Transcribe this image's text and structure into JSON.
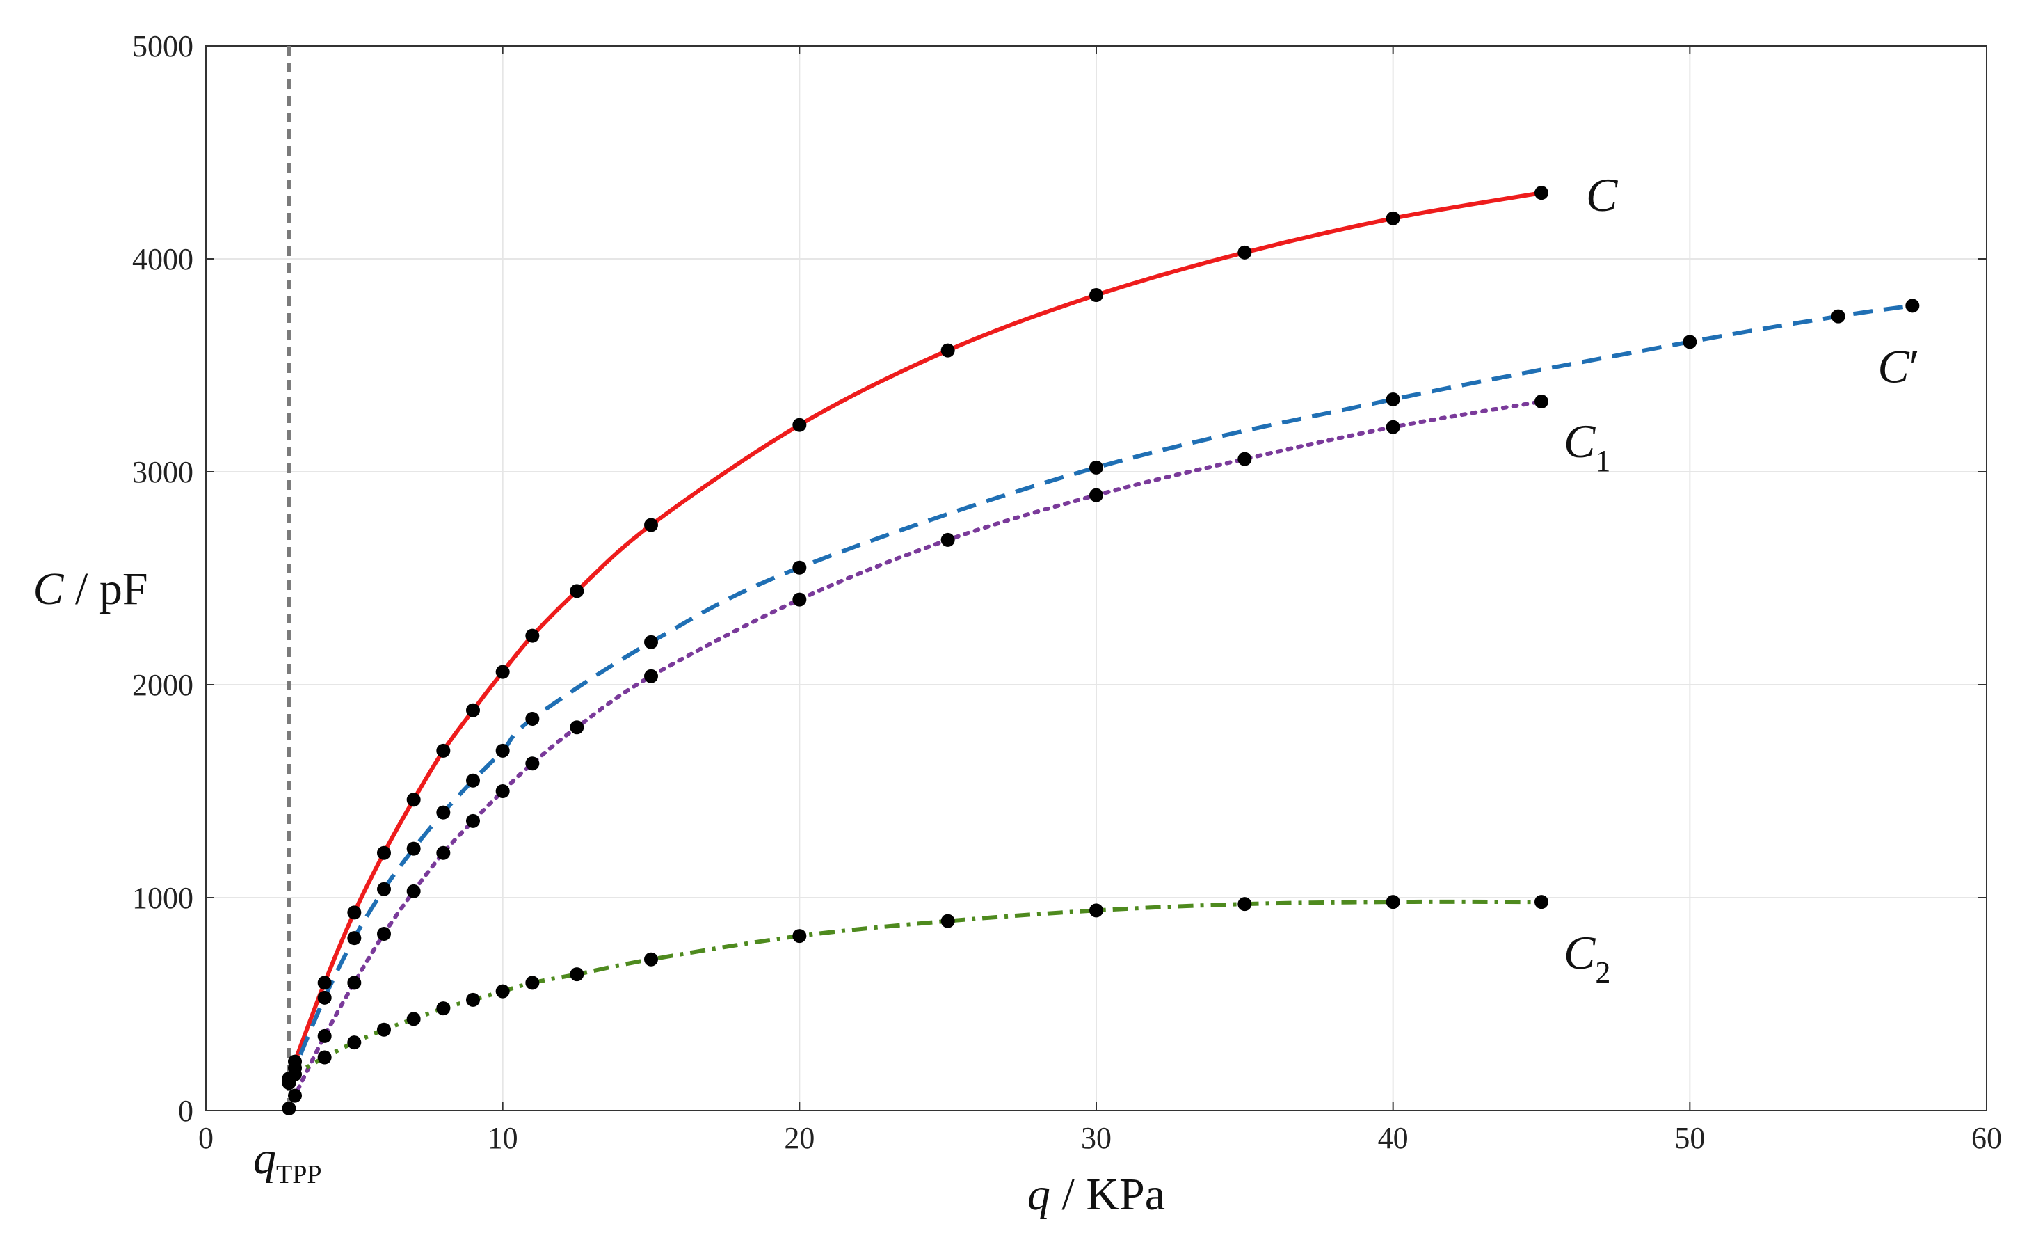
{
  "chart_data": {
    "type": "line",
    "xlabel": {
      "var": "q",
      "sep": " / ",
      "unit": "KPa"
    },
    "ylabel": {
      "var": "C",
      "sep": " / ",
      "unit": "pF"
    },
    "xlim": [
      0,
      60
    ],
    "ylim": [
      0,
      5000
    ],
    "xticks": [
      "0",
      "10",
      "20",
      "30",
      "40",
      "50",
      "60"
    ],
    "yticks": [
      "0",
      "1000",
      "2000",
      "3000",
      "4000",
      "5000"
    ],
    "grid": true,
    "vline": {
      "x": 2.8,
      "label_main": "q",
      "label_sub": "TPP"
    },
    "series": [
      {
        "name": "C",
        "name_main": "C",
        "name_sub": "",
        "color": "#ee1c1c",
        "dash": "solid",
        "x": [
          2.8,
          3,
          4,
          5,
          6,
          7,
          8,
          9,
          10,
          11,
          12.5,
          15,
          20,
          25,
          30,
          35,
          40,
          45
        ],
        "y": [
          150,
          230,
          600,
          930,
          1210,
          1460,
          1690,
          1880,
          2060,
          2230,
          2440,
          2750,
          3220,
          3570,
          3830,
          4030,
          4190,
          4310
        ]
      },
      {
        "name": "C′",
        "name_main": "C",
        "name_sub": "′",
        "color": "#1f6fb4",
        "dash": "dashed",
        "x": [
          2.8,
          3,
          4,
          5,
          6,
          7,
          8,
          9,
          10,
          11,
          15,
          20,
          30,
          40,
          50,
          55,
          57.5
        ],
        "y": [
          130,
          200,
          530,
          810,
          1040,
          1230,
          1400,
          1550,
          1690,
          1840,
          2200,
          2550,
          3020,
          3340,
          3610,
          3730,
          3780
        ]
      },
      {
        "name": "C1",
        "name_main": "C",
        "name_sub": "1",
        "color": "#7a3a9a",
        "dash": "dotted",
        "x": [
          2.8,
          3,
          4,
          5,
          6,
          7,
          8,
          9,
          10,
          11,
          12.5,
          15,
          20,
          25,
          30,
          35,
          40,
          45
        ],
        "y": [
          10,
          70,
          350,
          600,
          830,
          1030,
          1210,
          1360,
          1500,
          1630,
          1800,
          2040,
          2400,
          2680,
          2890,
          3060,
          3210,
          3330
        ]
      },
      {
        "name": "C2",
        "name_main": "C",
        "name_sub": "2",
        "color": "#4e8a1e",
        "dash": "dashdot",
        "x": [
          2.8,
          3,
          4,
          5,
          6,
          7,
          8,
          9,
          10,
          11,
          12.5,
          15,
          20,
          25,
          30,
          35,
          40,
          45
        ],
        "y": [
          140,
          170,
          250,
          320,
          380,
          430,
          480,
          520,
          560,
          600,
          640,
          710,
          820,
          890,
          940,
          970,
          980,
          980
        ]
      }
    ]
  }
}
